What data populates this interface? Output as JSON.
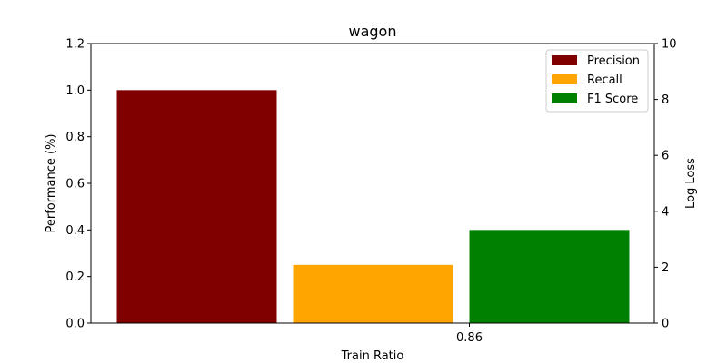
{
  "chart_data": {
    "type": "bar",
    "title": "wagon",
    "xlabel": "Train Ratio",
    "ylabel": "Performance (%)",
    "ylabel_right": "Log Loss",
    "categories": [
      "0.86"
    ],
    "ylim": [
      0,
      1.2
    ],
    "y_ticks": [
      "0.0",
      "0.2",
      "0.4",
      "0.6",
      "0.8",
      "1.0",
      "1.2"
    ],
    "y_tick_values": [
      0,
      0.2,
      0.4,
      0.6,
      0.8,
      1.0,
      1.2
    ],
    "ylim_right": [
      0,
      10
    ],
    "y_ticks_right": [
      "0",
      "2",
      "4",
      "6",
      "8",
      "10"
    ],
    "y_tick_values_right": [
      0,
      2,
      4,
      6,
      8,
      10
    ],
    "series": [
      {
        "name": "Precision",
        "values": [
          1.0
        ],
        "color": "#800000"
      },
      {
        "name": "Recall",
        "values": [
          0.25
        ],
        "color": "#FFA500"
      },
      {
        "name": "F1 Score",
        "values": [
          0.4
        ],
        "color": "#008000"
      }
    ],
    "legend_position": "top-right",
    "right_axis_label_color": "#800080",
    "grid": false
  }
}
